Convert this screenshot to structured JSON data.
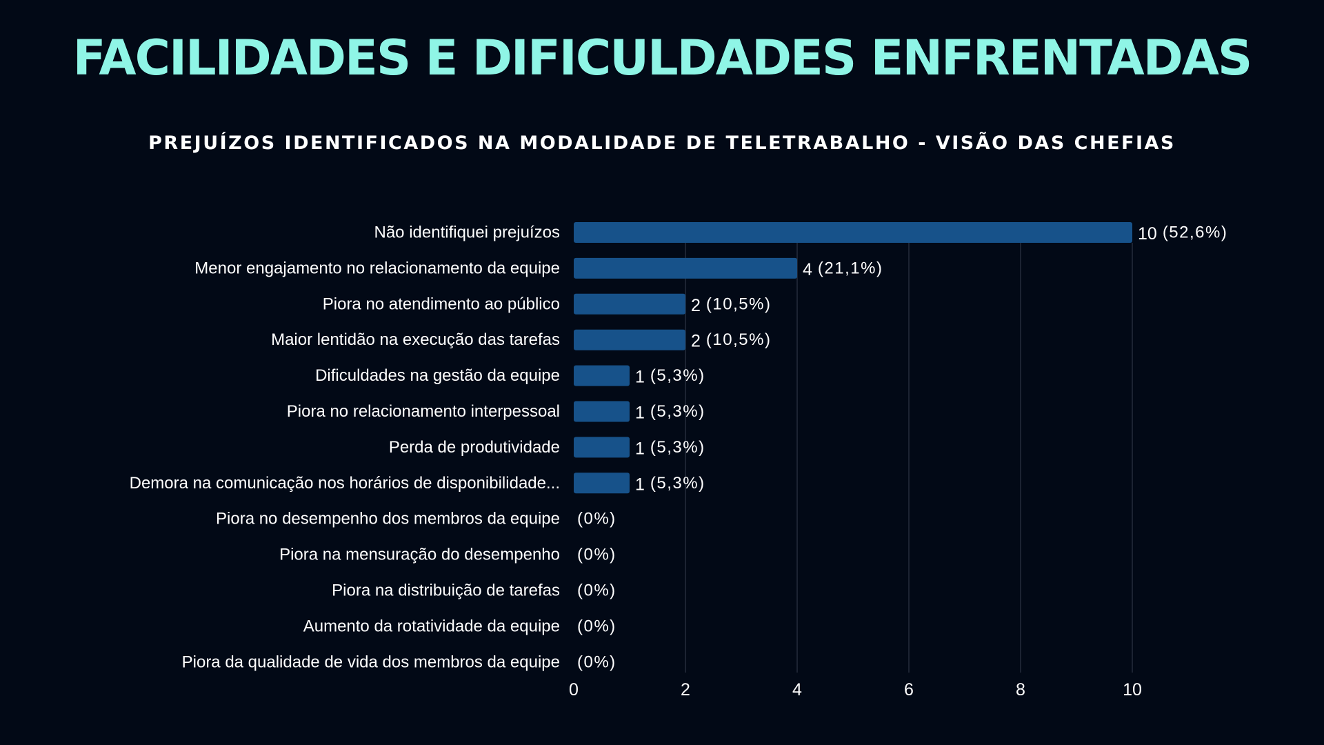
{
  "colors": {
    "background": "#020916",
    "title": "#8ff5e6",
    "bar": "#17528a",
    "text": "#ffffff",
    "grid": "#252c3c"
  },
  "header": {
    "title": "FACILIDADES E DIFICULDADES ENFRENTADAS"
  },
  "chart_data": {
    "type": "bar",
    "orientation": "horizontal",
    "title": "PREJUÍZOS IDENTIFICADOS NA MODALIDADE DE TELETRABALHO - VISÃO DAS CHEFIAS",
    "xlabel": "",
    "ylabel": "",
    "xlim": [
      0,
      10
    ],
    "xticks": [
      "0",
      "2",
      "4",
      "6",
      "8",
      "10"
    ],
    "grid": "vertical",
    "legend": "none",
    "categories": [
      "Não identifiquei prejuízos",
      "Menor engajamento no relacionamento da equipe",
      "Piora no atendimento ao público",
      "Maior lentidão na execução das tarefas",
      "Dificuldades na gestão da equipe",
      "Piora no relacionamento interpessoal",
      "Perda de produtividade",
      "Demora na comunicação nos horários de disponibilidade...",
      "Piora no desempenho dos membros da equipe",
      "Piora na mensuração do desempenho",
      "Piora na distribuição de tarefas",
      "Aumento da rotatividade da equipe",
      "Piora da qualidade de vida dos membros da equipe"
    ],
    "values": [
      10,
      4,
      2,
      2,
      1,
      1,
      1,
      1,
      0,
      0,
      0,
      0,
      0
    ],
    "data_labels": [
      "10",
      "4",
      "2",
      "2",
      "1",
      "1",
      "1",
      "1",
      "",
      "",
      "",
      "",
      ""
    ],
    "percent_labels": [
      "(52,6%)",
      "(21,1%)",
      "(10,5%)",
      "(10,5%)",
      "(5,3%)",
      "(5,3%)",
      "(5,3%)",
      "(5,3%)",
      "(0%)",
      "(0%)",
      "(0%)",
      "(0%)",
      "(0%)"
    ]
  }
}
